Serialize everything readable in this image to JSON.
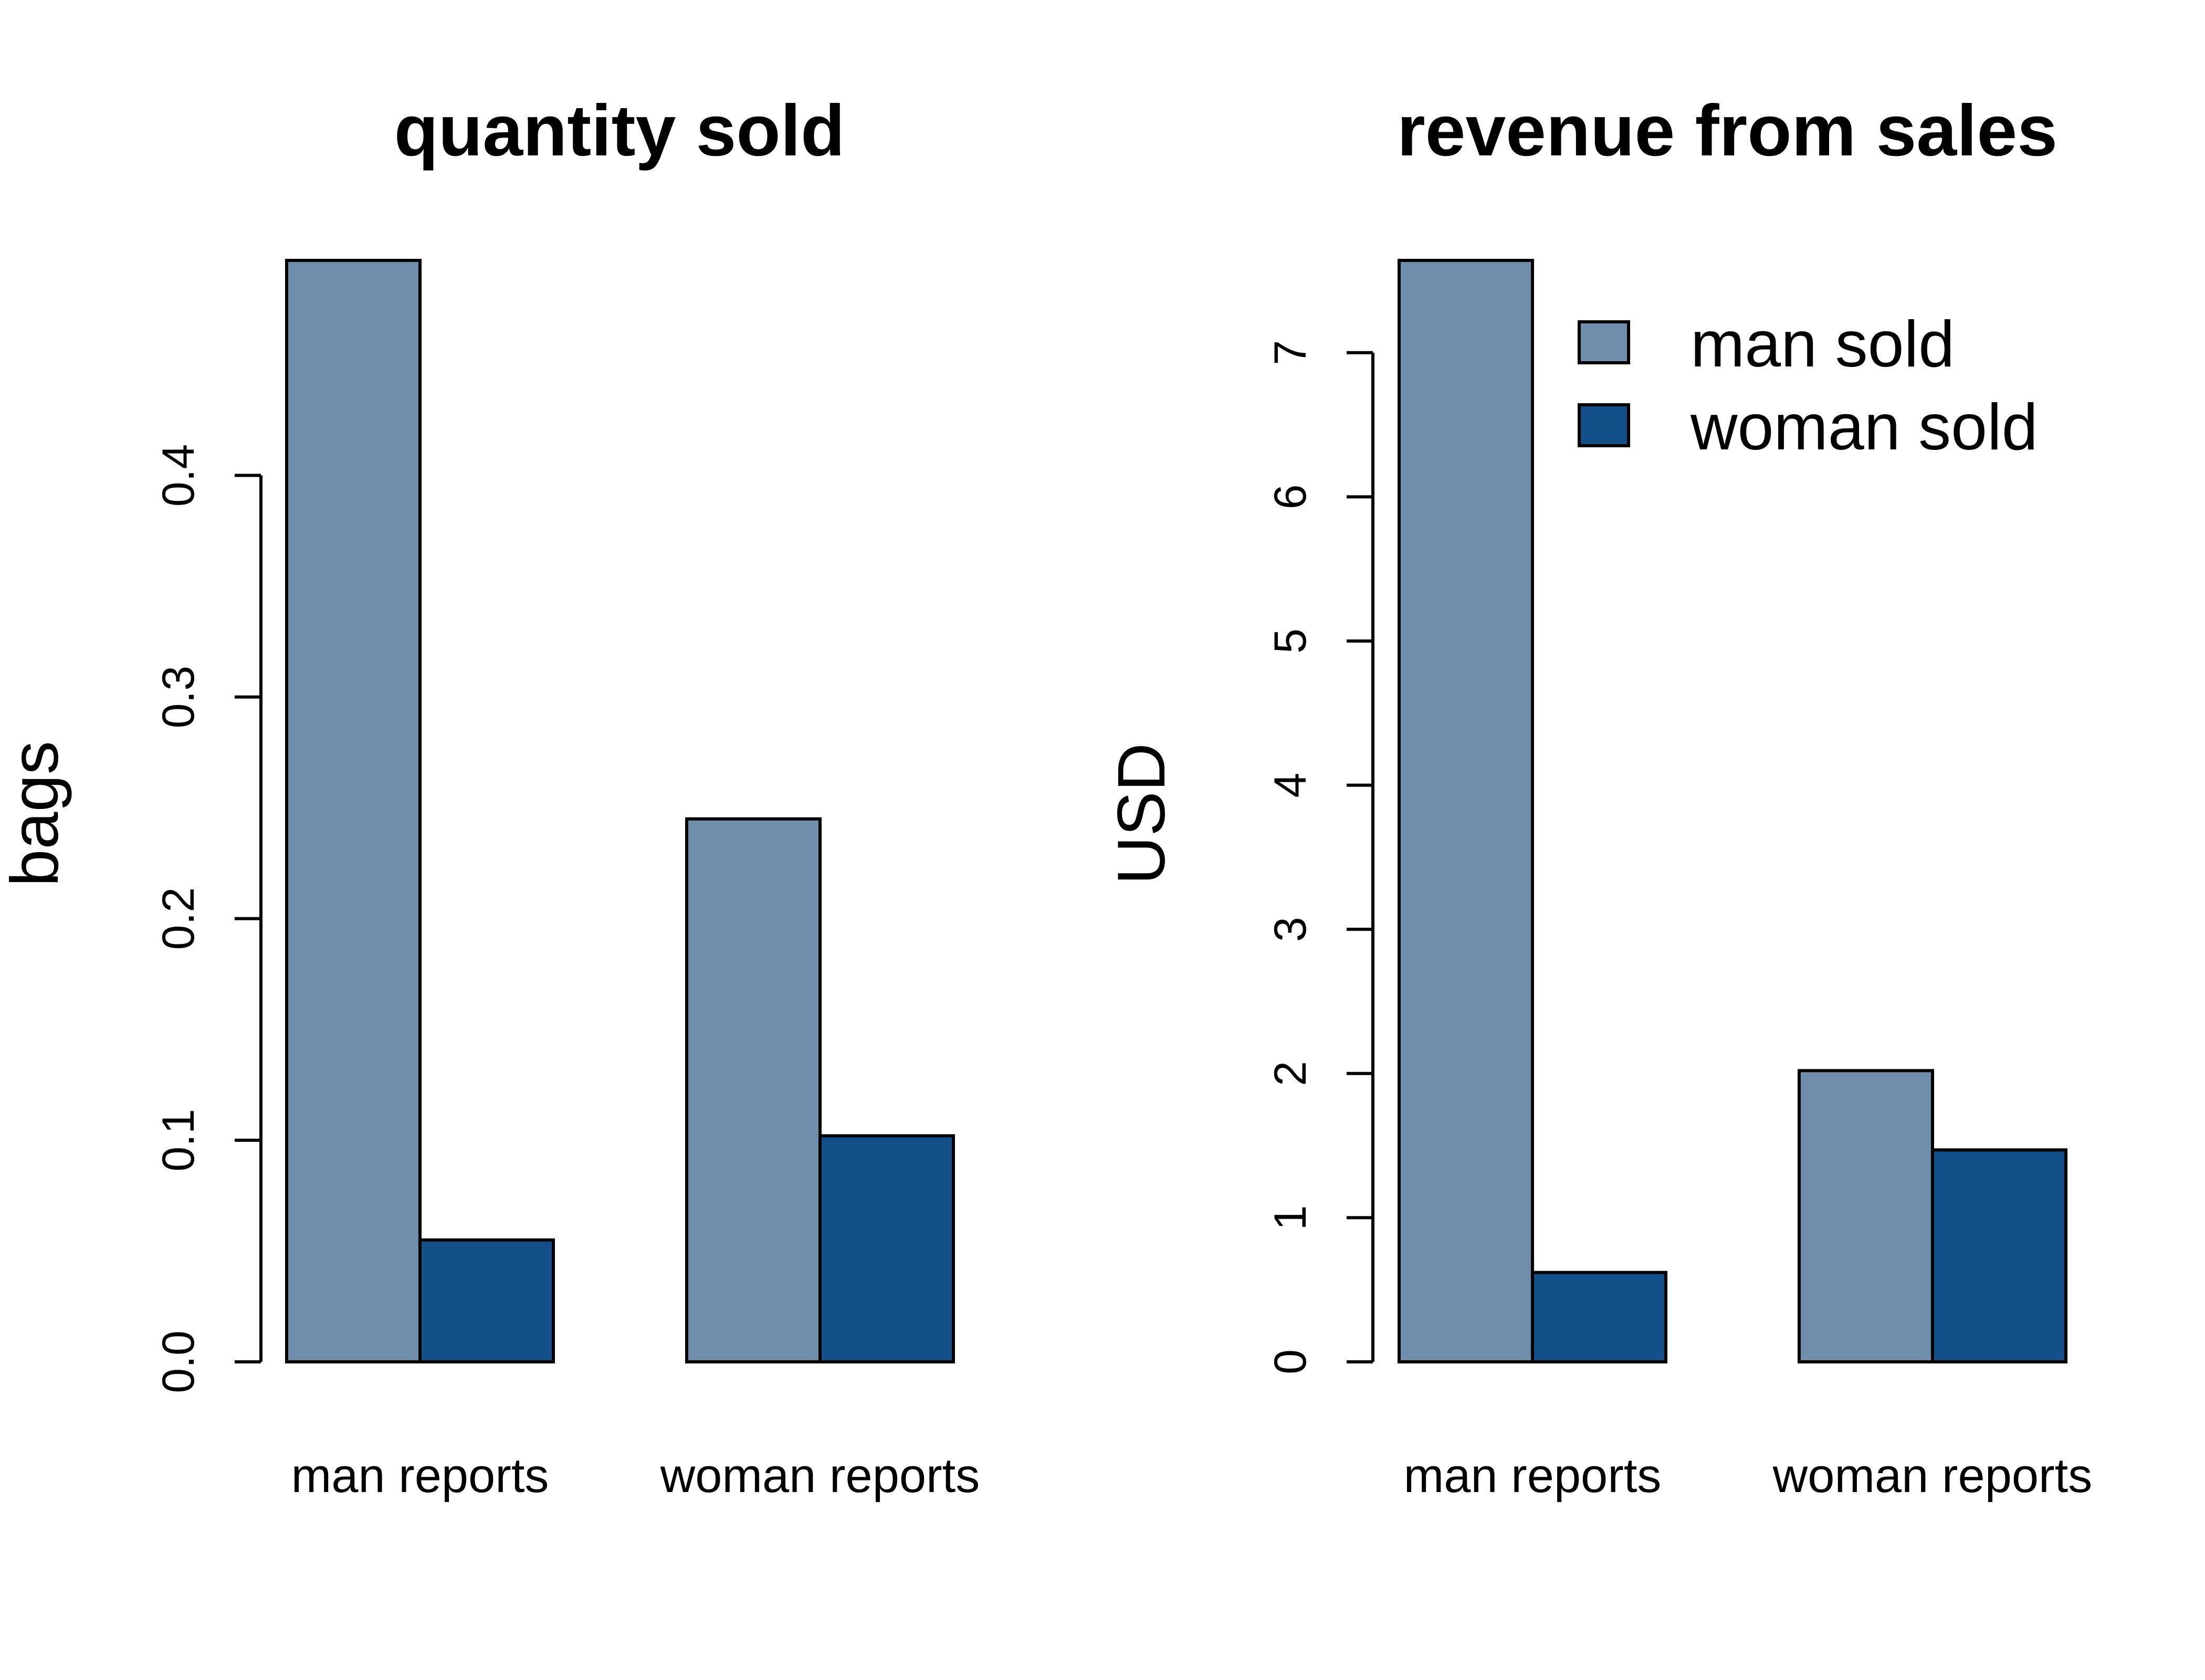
{
  "colors": {
    "man_sold": "#6f8eab",
    "woman_sold": "#134f89"
  },
  "chart_data": [
    {
      "type": "bar",
      "title": "quantity sold",
      "xlabel": "",
      "ylabel": "bags",
      "categories": [
        "man reports",
        "woman reports"
      ],
      "series": [
        {
          "name": "man sold",
          "values": [
            0.497,
            0.245
          ]
        },
        {
          "name": "woman sold",
          "values": [
            0.055,
            0.102
          ]
        }
      ],
      "yticks": [
        0.0,
        0.1,
        0.2,
        0.3,
        0.4
      ],
      "ytick_labels": [
        "0.0",
        "0.1",
        "0.2",
        "0.3",
        "0.4"
      ],
      "ylim": [
        0,
        0.497
      ],
      "grid": false,
      "legend": false
    },
    {
      "type": "bar",
      "title": "revenue from sales",
      "xlabel": "",
      "ylabel": "USD",
      "categories": [
        "man reports",
        "woman reports"
      ],
      "series": [
        {
          "name": "man sold",
          "values": [
            7.64,
            2.02
          ]
        },
        {
          "name": "woman sold",
          "values": [
            0.62,
            1.47
          ]
        }
      ],
      "yticks": [
        0,
        1,
        2,
        3,
        4,
        5,
        6,
        7
      ],
      "ytick_labels": [
        "0",
        "1",
        "2",
        "3",
        "4",
        "5",
        "6",
        "7"
      ],
      "ylim": [
        0,
        7.64
      ],
      "grid": false,
      "legend": true,
      "legend_position": "top-right"
    }
  ]
}
